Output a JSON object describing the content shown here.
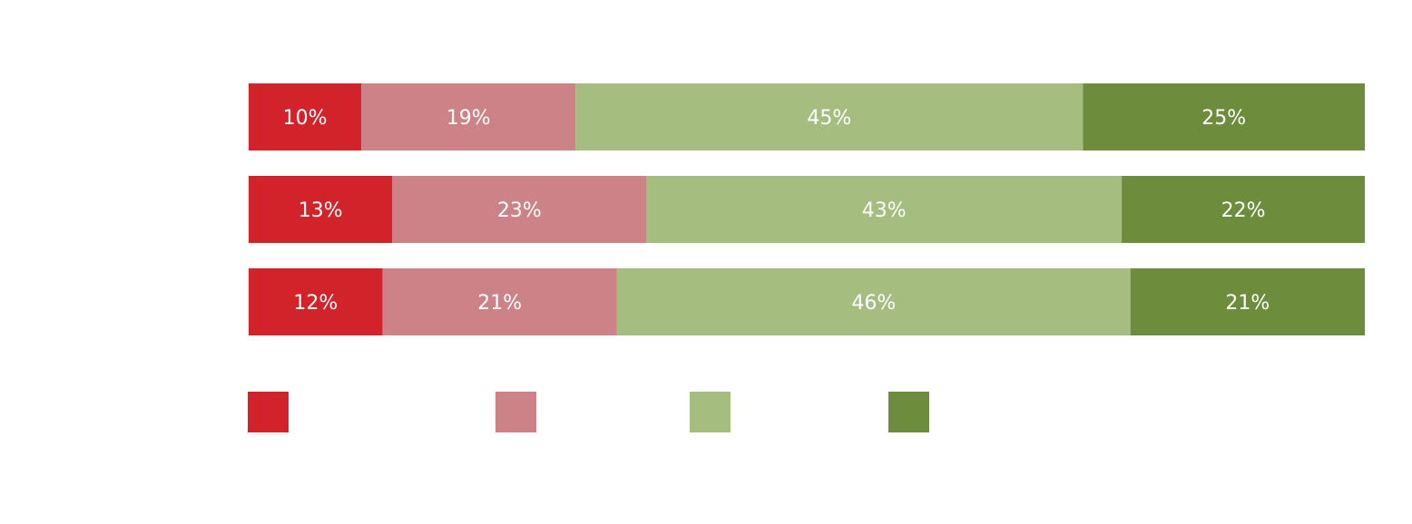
{
  "chart_data": {
    "type": "bar",
    "orientation": "horizontal",
    "stacked": true,
    "normalized": true,
    "unit": "%",
    "categories": [
      "",
      "",
      ""
    ],
    "series": [
      {
        "color": "#d3232a",
        "values": [
          10,
          13,
          12
        ],
        "labels": [
          "10%",
          "13%",
          "12%"
        ]
      },
      {
        "color": "#cc8286",
        "values": [
          19,
          23,
          21
        ],
        "labels": [
          "19%",
          "23%",
          "21%"
        ]
      },
      {
        "color": "#a6bd80",
        "values": [
          45,
          43,
          46
        ],
        "labels": [
          "45%",
          "43%",
          "46%"
        ]
      },
      {
        "color": "#6d8c3c",
        "values": [
          25,
          22,
          21
        ],
        "labels": [
          "25%",
          "22%",
          "21%"
        ]
      }
    ],
    "legend": {
      "placement": "bottom-left",
      "entries": [
        "",
        "",
        "",
        ""
      ]
    },
    "grid": false,
    "label_color": "#ffffff"
  }
}
